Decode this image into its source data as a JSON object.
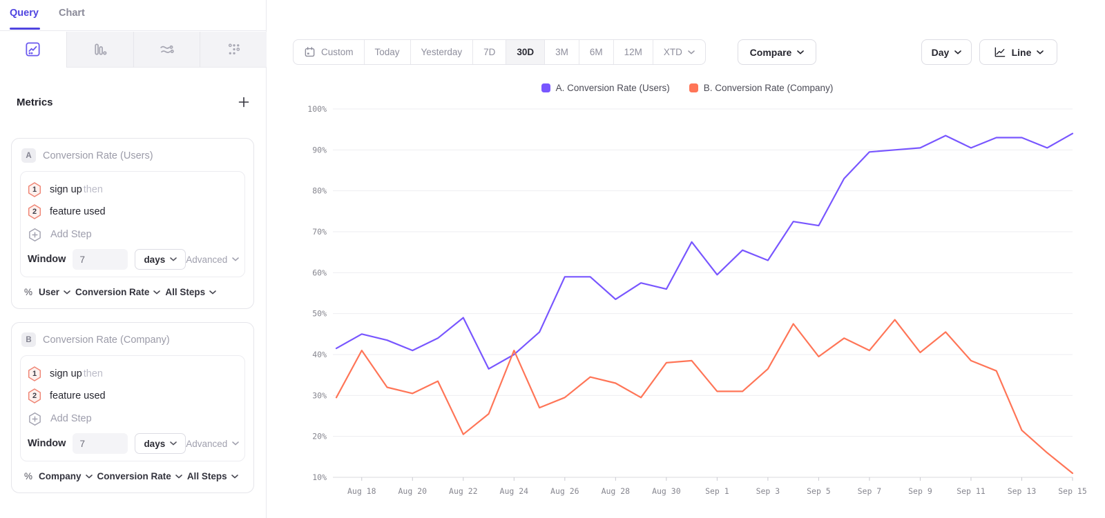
{
  "colors": {
    "accent": "#4f44e0",
    "series_a": "#7856ff",
    "series_b": "#ff7557"
  },
  "sidebar": {
    "tabs": [
      {
        "label": "Query"
      },
      {
        "label": "Chart"
      }
    ],
    "chart_type_icons": [
      "insights-line-icon",
      "bar-chart-icon",
      "flows-icon",
      "retention-dots-icon"
    ],
    "metrics": {
      "title": "Metrics",
      "add": "+"
    },
    "cards": [
      {
        "badge": "A",
        "title": "Conversion Rate (Users)",
        "steps": [
          {
            "num": "1",
            "label": "sign up",
            "suffix": "then"
          },
          {
            "num": "2",
            "label": "feature used",
            "suffix": ""
          }
        ],
        "add_step": "Add Step",
        "window_label": "Window",
        "window_value": "7",
        "window_unit": "days",
        "advanced": "Advanced",
        "measure": {
          "prefix": "%",
          "entity": "User",
          "metric": "Conversion Rate",
          "scope": "All Steps"
        }
      },
      {
        "badge": "B",
        "title": "Conversion Rate (Company)",
        "steps": [
          {
            "num": "1",
            "label": "sign up",
            "suffix": "then"
          },
          {
            "num": "2",
            "label": "feature used",
            "suffix": ""
          }
        ],
        "add_step": "Add Step",
        "window_label": "Window",
        "window_value": "7",
        "window_unit": "days",
        "advanced": "Advanced",
        "measure": {
          "prefix": "%",
          "entity": "Company",
          "metric": "Conversion Rate",
          "scope": "All Steps"
        }
      }
    ]
  },
  "toolbar": {
    "ranges": [
      {
        "label": "Custom"
      },
      {
        "label": "Today"
      },
      {
        "label": "Yesterday"
      },
      {
        "label": "7D"
      },
      {
        "label": "30D"
      },
      {
        "label": "3M"
      },
      {
        "label": "6M"
      },
      {
        "label": "12M"
      },
      {
        "label": "XTD"
      }
    ],
    "active_range": "30D",
    "compare": "Compare",
    "granularity": "Day",
    "style": "Line"
  },
  "legend": {
    "items": [
      {
        "label": "A. Conversion Rate (Users)",
        "color": "#7856ff"
      },
      {
        "label": "B. Conversion Rate (Company)",
        "color": "#ff7557"
      }
    ]
  },
  "chart_data": {
    "type": "line",
    "x": [
      "Aug 17",
      "Aug 18",
      "Aug 19",
      "Aug 20",
      "Aug 21",
      "Aug 22",
      "Aug 23",
      "Aug 24",
      "Aug 25",
      "Aug 26",
      "Aug 27",
      "Aug 28",
      "Aug 29",
      "Aug 30",
      "Aug 31",
      "Sep 1",
      "Sep 2",
      "Sep 3",
      "Sep 4",
      "Sep 5",
      "Sep 6",
      "Sep 7",
      "Sep 8",
      "Sep 9",
      "Sep 10",
      "Sep 11",
      "Sep 12",
      "Sep 13",
      "Sep 14",
      "Sep 15"
    ],
    "series": [
      {
        "name": "A. Conversion Rate (Users)",
        "color": "#7856ff",
        "values": [
          41.5,
          45,
          43.5,
          41,
          44,
          49,
          36.5,
          40,
          45.5,
          59,
          59,
          53.5,
          57.5,
          56,
          67.5,
          59.5,
          65.5,
          63,
          72.5,
          71.5,
          83,
          89.5,
          90,
          90.5,
          93.5,
          90.5,
          93,
          93,
          90.5,
          94
        ]
      },
      {
        "name": "B. Conversion Rate (Company)",
        "color": "#ff7557",
        "values": [
          29.5,
          41,
          32,
          30.5,
          33.5,
          20.5,
          25.5,
          41,
          27,
          29.5,
          34.5,
          33,
          29.5,
          38,
          38.5,
          31,
          31,
          36.5,
          47.5,
          39.5,
          44,
          41,
          48.5,
          40.5,
          45.5,
          38.5,
          36,
          21.5,
          16,
          11
        ]
      }
    ],
    "ylabel": "",
    "xlabel": "",
    "ylim": [
      10,
      100
    ],
    "y_tick_step": 10,
    "y_tick_suffix": "%",
    "x_tick_indices": [
      1,
      3,
      5,
      7,
      9,
      11,
      13,
      15,
      17,
      19,
      21,
      23,
      25,
      27,
      29
    ],
    "grid": "horizontal",
    "legend_position": "top"
  }
}
